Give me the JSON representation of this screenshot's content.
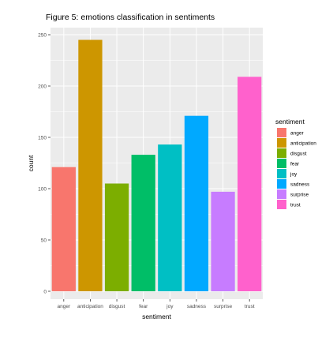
{
  "chart_data": {
    "type": "bar",
    "title": "Figure 5: emotions classification in sentiments",
    "xlabel": "sentiment",
    "ylabel": "count",
    "categories": [
      "anger",
      "anticipation",
      "disgust",
      "fear",
      "joy",
      "sadness",
      "surprise",
      "trust"
    ],
    "values": [
      121,
      245,
      105,
      133,
      143,
      171,
      97,
      209
    ],
    "colors": [
      "#F8766D",
      "#CD9600",
      "#7CAE00",
      "#00BE67",
      "#00BFC4",
      "#00A9FF",
      "#C77CFF",
      "#FF61CC"
    ],
    "ylim": [
      0,
      255
    ],
    "yticks": [
      0,
      50,
      100,
      150,
      200,
      250
    ],
    "grid": true,
    "legend": {
      "title": "sentiment",
      "placement": "right",
      "items": [
        "anger",
        "anticipation",
        "disgust",
        "fear",
        "joy",
        "sadness",
        "surprise",
        "trust"
      ]
    },
    "panel_background": "#EBEBEB",
    "gridline_color": "#FFFFFF"
  }
}
